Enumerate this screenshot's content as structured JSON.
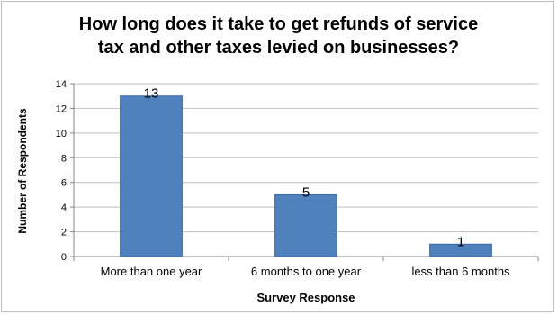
{
  "chart_data": {
    "type": "bar",
    "title_lines": [
      "How long does it take to get refunds of service",
      "tax and other taxes levied on businesses?"
    ],
    "xlabel": "Survey Response",
    "ylabel": "Number of Respondents",
    "categories": [
      "More than one year",
      "6 months to one year",
      "less than 6 months"
    ],
    "values": [
      13,
      5,
      1
    ],
    "data_labels": [
      "13",
      "5",
      "1"
    ],
    "ylim": [
      0,
      14
    ],
    "yticks": [
      "0",
      "2",
      "4",
      "6",
      "8",
      "10",
      "12",
      "14"
    ],
    "grid": true,
    "legend": "none",
    "bar_color": "#4f81bd",
    "bar_border_color": "#3c6aa6",
    "grid_color": "#bfbfbf"
  }
}
